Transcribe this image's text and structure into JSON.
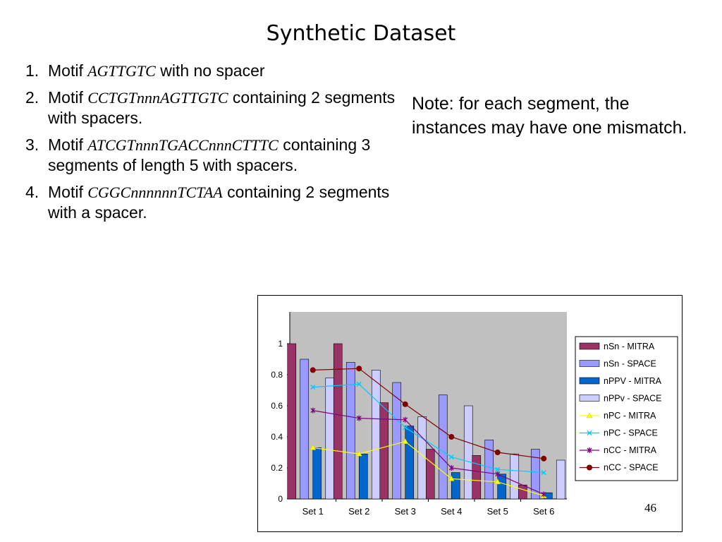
{
  "title": "Synthetic Dataset",
  "list": [
    {
      "num": "1.",
      "prefix": "Motif ",
      "motif": "AGTTGTC",
      "suffix": " with no spacer"
    },
    {
      "num": "2.",
      "prefix": "Motif ",
      "motif": "CCTGTnnnAGTTGTC",
      "suffix": " containing 2 segments with spacers."
    },
    {
      "num": "3.",
      "prefix": "Motif ",
      "motif": "ATCGTnnnTGACCnnnCTTTC",
      "suffix": " containing 3 segments of length 5 with spacers."
    },
    {
      "num": "4.",
      "prefix": "Motif ",
      "motif": "CGGCnnnnnnTCTAA",
      "suffix": " containing 2 segments with a spacer."
    }
  ],
  "note": "Note: for each segment, the instances may have one mismatch.",
  "page_number": "46",
  "chart_data": {
    "type": "bar",
    "categories": [
      "Set 1",
      "Set 2",
      "Set 3",
      "Set 4",
      "Set 5",
      "Set 6"
    ],
    "ylim": [
      0,
      1
    ],
    "yticks": [
      "0",
      "0.2",
      "0.4",
      "0.6",
      "0.8",
      "1"
    ],
    "legend_position": "right",
    "bar_series": [
      {
        "name": "nSn - MITRA",
        "color": "#993366",
        "values": [
          1.0,
          1.0,
          0.62,
          0.32,
          0.28,
          0.09
        ]
      },
      {
        "name": "nSn - SPACE",
        "color": "#9999ff",
        "values": [
          0.9,
          0.88,
          0.75,
          0.67,
          0.38,
          0.32
        ]
      },
      {
        "name": "nPPV - MITRA",
        "color": "#0066cc",
        "values": [
          0.33,
          0.29,
          0.47,
          0.17,
          0.16,
          0.04
        ]
      },
      {
        "name": "nPPv - SPACE",
        "color": "#ccccff",
        "values": [
          0.78,
          0.83,
          0.53,
          0.6,
          0.29,
          0.25
        ]
      }
    ],
    "line_series": [
      {
        "name": "nPC - MITRA",
        "color": "#ffff00",
        "marker": "triangle",
        "values": [
          0.33,
          0.29,
          0.37,
          0.13,
          0.11,
          0.02
        ]
      },
      {
        "name": "nPC - SPACE",
        "color": "#00ccff",
        "marker": "x",
        "values": [
          0.72,
          0.74,
          0.46,
          0.27,
          0.19,
          0.17
        ]
      },
      {
        "name": "nCC - MITRA",
        "color": "#800080",
        "marker": "star",
        "values": [
          0.57,
          0.52,
          0.51,
          0.2,
          0.16,
          0.03
        ]
      },
      {
        "name": "nCC - SPACE",
        "color": "#800000",
        "marker": "circle",
        "values": [
          0.83,
          0.84,
          0.61,
          0.4,
          0.3,
          0.26
        ]
      }
    ],
    "plot_background": "#c0c0c0"
  }
}
